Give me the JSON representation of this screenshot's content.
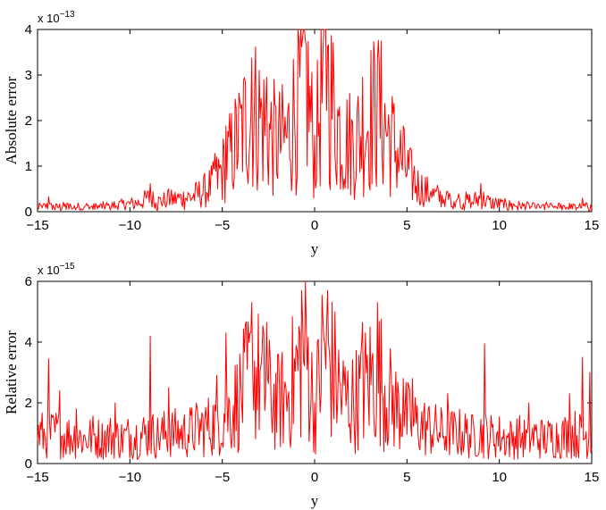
{
  "chart_data": [
    {
      "type": "line",
      "xlabel": "y",
      "ylabel": "Absolute error",
      "y_multiplier": {
        "base": "x 10",
        "exponent": "−13"
      },
      "xlim": [
        -15,
        15
      ],
      "ylim": [
        0,
        4
      ],
      "xticks": [
        "−15",
        "−10",
        "−5",
        "0",
        "5",
        "10",
        "15"
      ],
      "yticks": [
        "0",
        "1",
        "2",
        "3",
        "4"
      ],
      "grid": false,
      "color": "#ff0000",
      "x": [
        -15,
        -14.5,
        -14,
        -13.5,
        -13,
        -12.5,
        -12,
        -11.5,
        -11,
        -10.5,
        -10,
        -9.5,
        -9,
        -8.5,
        -8,
        -7.5,
        -7,
        -6.5,
        -6,
        -5.5,
        -5,
        -4.5,
        -4,
        -3.5,
        -3,
        -2.5,
        -2,
        -1.5,
        -1,
        -0.5,
        0,
        0.5,
        1,
        1.5,
        2,
        2.5,
        3,
        3.5,
        4,
        4.5,
        5,
        5.5,
        6,
        6.5,
        7,
        7.5,
        8,
        8.5,
        9,
        9.5,
        10,
        10.5,
        11,
        11.5,
        12,
        12.5,
        13,
        13.5,
        14,
        14.5,
        15
      ],
      "values": [
        0.1,
        0.12,
        0.1,
        0.12,
        0.1,
        0.12,
        0.1,
        0.12,
        0.13,
        0.15,
        0.17,
        0.2,
        0.3,
        0.22,
        0.25,
        0.28,
        0.3,
        0.35,
        0.45,
        0.6,
        0.9,
        1.3,
        1.7,
        2.2,
        2.1,
        1.7,
        1.5,
        1.6,
        2.3,
        3.0,
        1.3,
        3.0,
        2.3,
        1.6,
        1.5,
        1.7,
        2.1,
        2.2,
        1.7,
        1.3,
        0.9,
        0.6,
        0.45,
        0.35,
        0.3,
        0.28,
        0.25,
        0.22,
        0.3,
        0.2,
        0.17,
        0.15,
        0.13,
        0.12,
        0.1,
        0.12,
        0.1,
        0.12,
        0.1,
        0.12,
        0.1
      ],
      "peaks": [
        {
          "x": -14.4,
          "y": 0.33
        },
        {
          "x": -8.9,
          "y": 0.62
        },
        {
          "x": -7.9,
          "y": 0.5
        },
        {
          "x": -5.4,
          "y": 1.28
        },
        {
          "x": -4.8,
          "y": 1.88
        },
        {
          "x": -3.4,
          "y": 3.37
        },
        {
          "x": -2.6,
          "y": 2.95
        },
        {
          "x": -0.7,
          "y": 3.62
        },
        {
          "x": 0.7,
          "y": 3.62
        },
        {
          "x": 2.6,
          "y": 2.95
        },
        {
          "x": 3.4,
          "y": 3.37
        },
        {
          "x": 4.8,
          "y": 1.88
        },
        {
          "x": 5.4,
          "y": 1.0
        },
        {
          "x": 6.3,
          "y": 0.45
        },
        {
          "x": 9.0,
          "y": 0.62
        },
        {
          "x": 14.5,
          "y": 0.3
        }
      ]
    },
    {
      "type": "line",
      "xlabel": "y",
      "ylabel": "Relative error",
      "y_multiplier": {
        "base": "x 10",
        "exponent": "−15"
      },
      "xlim": [
        -15,
        15
      ],
      "ylim": [
        0,
        6
      ],
      "xticks": [
        "−15",
        "−10",
        "−5",
        "0",
        "5",
        "10",
        "15"
      ],
      "yticks": [
        "0",
        "2",
        "4",
        "6"
      ],
      "grid": false,
      "color": "#ff0000",
      "x": [
        -15,
        -14.5,
        -14,
        -13.5,
        -13,
        -12.5,
        -12,
        -11.5,
        -11,
        -10.5,
        -10,
        -9.5,
        -9,
        -8.5,
        -8,
        -7.5,
        -7,
        -6.5,
        -6,
        -5.5,
        -5,
        -4.5,
        -4,
        -3.5,
        -3,
        -2.5,
        -2,
        -1.5,
        -1,
        -0.5,
        0,
        0.5,
        1,
        1.5,
        2,
        2.5,
        3,
        3.5,
        4,
        4.5,
        5,
        5.5,
        6,
        6.5,
        7,
        7.5,
        8,
        8.5,
        9,
        9.5,
        10,
        10.5,
        11,
        11.5,
        12,
        12.5,
        13,
        13.5,
        14,
        14.5,
        15
      ],
      "values": [
        1.0,
        0.9,
        1.0,
        0.9,
        0.9,
        0.8,
        0.9,
        0.8,
        0.9,
        0.8,
        0.9,
        0.9,
        1.0,
        0.9,
        1.0,
        1.0,
        1.0,
        1.1,
        1.2,
        1.3,
        1.5,
        1.8,
        2.2,
        2.9,
        2.8,
        2.3,
        2.0,
        2.2,
        3.0,
        3.9,
        1.7,
        3.9,
        3.0,
        2.2,
        2.0,
        2.3,
        2.8,
        2.9,
        2.2,
        1.8,
        1.5,
        1.3,
        1.2,
        1.1,
        1.0,
        1.0,
        1.0,
        0.9,
        1.0,
        0.9,
        0.9,
        0.8,
        0.9,
        0.8,
        0.9,
        0.8,
        0.9,
        0.9,
        1.0,
        0.9,
        1.0
      ],
      "peaks": [
        {
          "x": -14.4,
          "y": 3.45
        },
        {
          "x": -13.8,
          "y": 2.4
        },
        {
          "x": -12.9,
          "y": 1.8
        },
        {
          "x": -10.8,
          "y": 2.0
        },
        {
          "x": -8.9,
          "y": 4.2
        },
        {
          "x": -7.9,
          "y": 2.5
        },
        {
          "x": -5.3,
          "y": 2.9
        },
        {
          "x": -4.8,
          "y": 4.3
        },
        {
          "x": -3.4,
          "y": 5.3
        },
        {
          "x": -2.6,
          "y": 4.65
        },
        {
          "x": -0.7,
          "y": 5.7
        },
        {
          "x": 0.7,
          "y": 5.7
        },
        {
          "x": 2.6,
          "y": 4.65
        },
        {
          "x": 3.4,
          "y": 5.3
        },
        {
          "x": 4.8,
          "y": 2.8
        },
        {
          "x": 5.3,
          "y": 2.8
        },
        {
          "x": 7.2,
          "y": 2.3
        },
        {
          "x": 9.2,
          "y": 3.95
        },
        {
          "x": 11.6,
          "y": 2.0
        },
        {
          "x": 13.8,
          "y": 2.3
        },
        {
          "x": 14.5,
          "y": 3.5
        },
        {
          "x": 14.9,
          "y": 3.0
        }
      ]
    }
  ]
}
